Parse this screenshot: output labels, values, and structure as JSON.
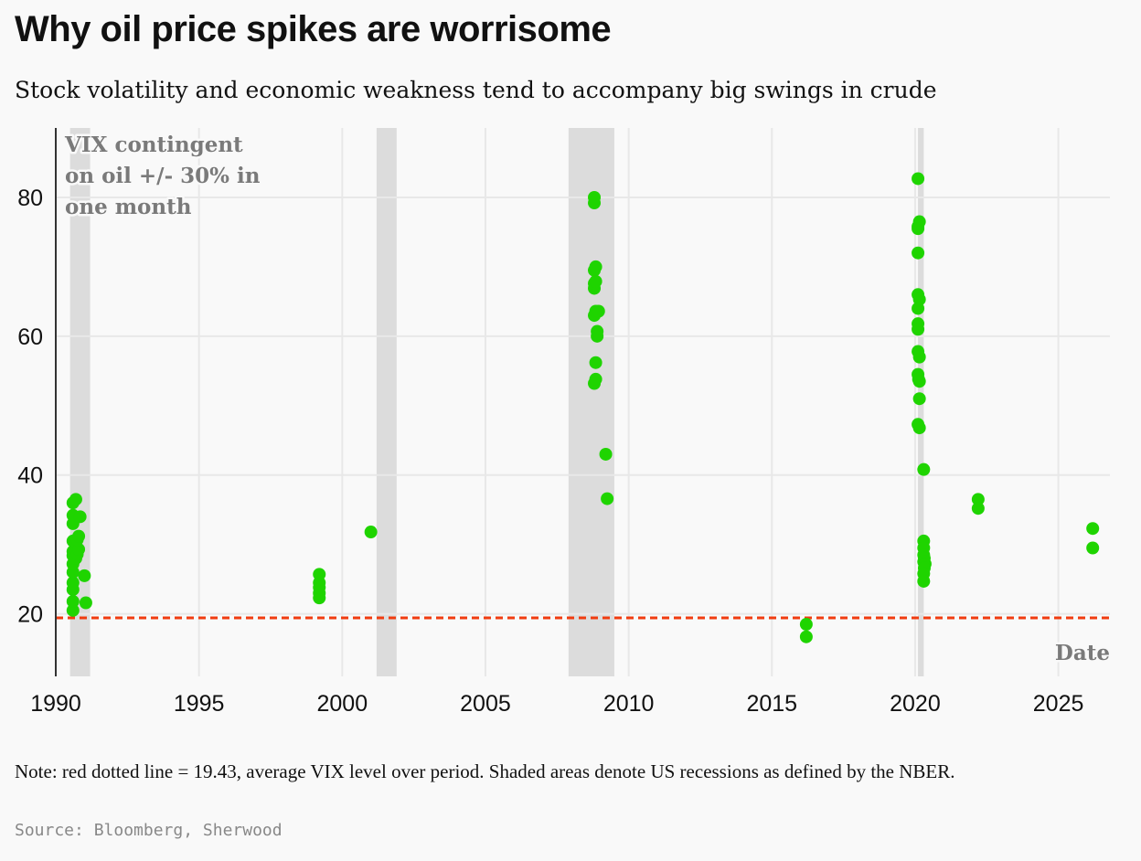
{
  "header": {
    "title": "Why oil price spikes are worrisome",
    "subtitle": "Stock volatility and economic weakness tend to accompany big swings in crude"
  },
  "footer": {
    "note": "Note: red dotted line = 19.43, average VIX level over period. Shaded areas denote US recessions as defined by the NBER.",
    "source": "Source: Bloomberg, Sherwood"
  },
  "colors": {
    "point": "#1fd400",
    "average_line": "#f03c0f",
    "recession": "#dcdcdc",
    "grid": "#e8e8e8",
    "label_gray": "#7a7a7a"
  },
  "chart_data": {
    "type": "scatter",
    "title": "Why oil price spikes are worrisome",
    "y_label_lines": [
      "VIX contingent",
      "on oil +/- 30% in",
      "one month"
    ],
    "xlabel": "Date",
    "xlim": [
      1990,
      2026.8
    ],
    "ylim": [
      11,
      90
    ],
    "x_ticks": [
      1990,
      1995,
      2000,
      2005,
      2010,
      2015,
      2020,
      2025
    ],
    "y_ticks": [
      20,
      40,
      60,
      80
    ],
    "average_line": {
      "value": 19.43,
      "label": "average VIX level over period"
    },
    "recessions": [
      {
        "start": 1990.5,
        "end": 1991.2
      },
      {
        "start": 2001.2,
        "end": 2001.9
      },
      {
        "start": 2007.9,
        "end": 2009.5
      },
      {
        "start": 2020.1,
        "end": 2020.3
      }
    ],
    "series": [
      {
        "name": "VIX",
        "points": [
          [
            1990.6,
            20.5
          ],
          [
            1990.6,
            21.8
          ],
          [
            1990.6,
            23.5
          ],
          [
            1990.6,
            24.5
          ],
          [
            1990.6,
            26.0
          ],
          [
            1990.6,
            27.2
          ],
          [
            1990.6,
            28.4
          ],
          [
            1990.6,
            29.0
          ],
          [
            1990.6,
            30.5
          ],
          [
            1990.6,
            33.0
          ],
          [
            1990.6,
            34.2
          ],
          [
            1990.6,
            36.0
          ],
          [
            1990.7,
            36.5
          ],
          [
            1990.7,
            28.0
          ],
          [
            1990.75,
            28.6
          ],
          [
            1990.8,
            29.3
          ],
          [
            1990.75,
            30.7
          ],
          [
            1990.8,
            31.2
          ],
          [
            1990.85,
            34.0
          ],
          [
            1991.0,
            25.5
          ],
          [
            1991.05,
            21.6
          ],
          [
            1999.2,
            22.3
          ],
          [
            1999.2,
            23.0
          ],
          [
            1999.2,
            23.8
          ],
          [
            1999.2,
            24.5
          ],
          [
            1999.2,
            25.7
          ],
          [
            2001.0,
            31.8
          ],
          [
            2008.8,
            53.2
          ],
          [
            2008.85,
            53.8
          ],
          [
            2008.85,
            56.2
          ],
          [
            2008.9,
            60.0
          ],
          [
            2008.9,
            60.7
          ],
          [
            2008.8,
            63.0
          ],
          [
            2008.85,
            63.6
          ],
          [
            2008.95,
            63.6
          ],
          [
            2008.8,
            66.9
          ],
          [
            2008.8,
            67.6
          ],
          [
            2008.85,
            67.9
          ],
          [
            2008.8,
            69.5
          ],
          [
            2008.85,
            70.0
          ],
          [
            2008.8,
            79.2
          ],
          [
            2008.8,
            80.0
          ],
          [
            2009.2,
            43.0
          ],
          [
            2009.25,
            36.6
          ],
          [
            2016.2,
            16.7
          ],
          [
            2016.2,
            18.5
          ],
          [
            2020.1,
            82.7
          ],
          [
            2020.15,
            76.5
          ],
          [
            2020.1,
            75.8
          ],
          [
            2020.1,
            75.5
          ],
          [
            2020.1,
            72.0
          ],
          [
            2020.1,
            66.0
          ],
          [
            2020.15,
            65.3
          ],
          [
            2020.1,
            64.0
          ],
          [
            2020.1,
            61.8
          ],
          [
            2020.1,
            61.0
          ],
          [
            2020.1,
            57.8
          ],
          [
            2020.15,
            57.0
          ],
          [
            2020.1,
            54.5
          ],
          [
            2020.12,
            53.8
          ],
          [
            2020.15,
            53.5
          ],
          [
            2020.15,
            51.0
          ],
          [
            2020.1,
            47.3
          ],
          [
            2020.15,
            46.8
          ],
          [
            2020.3,
            40.8
          ],
          [
            2020.3,
            30.5
          ],
          [
            2020.3,
            29.5
          ],
          [
            2020.3,
            28.5
          ],
          [
            2020.32,
            28.0
          ],
          [
            2020.3,
            27.5
          ],
          [
            2020.35,
            27.2
          ],
          [
            2020.32,
            26.6
          ],
          [
            2020.3,
            25.8
          ],
          [
            2020.3,
            24.7
          ],
          [
            2022.2,
            36.5
          ],
          [
            2022.2,
            35.2
          ],
          [
            2026.2,
            32.3
          ],
          [
            2026.2,
            29.5
          ]
        ]
      }
    ]
  }
}
